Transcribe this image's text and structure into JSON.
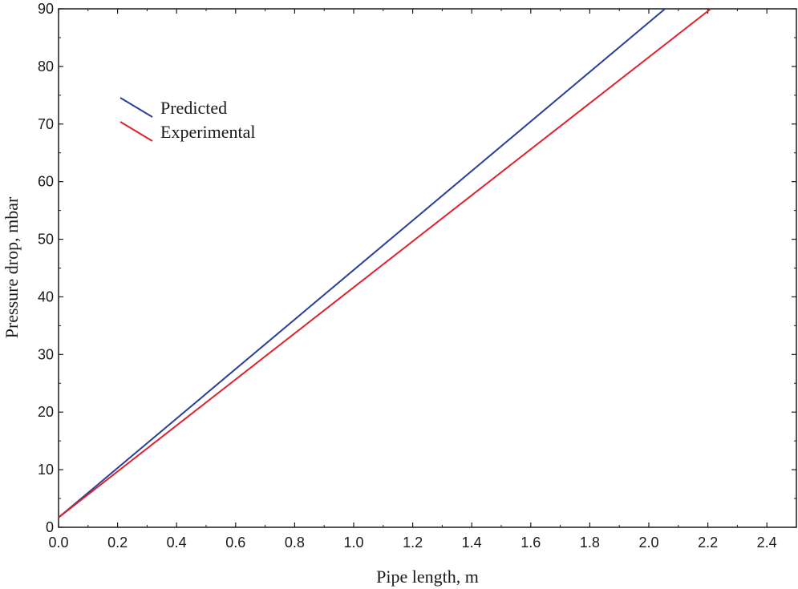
{
  "chart_data": {
    "type": "line",
    "title": "",
    "xlabel": "Pipe length, m",
    "ylabel": "Pressure drop, mbar",
    "xlim": [
      0,
      2.5
    ],
    "ylim": [
      0,
      90
    ],
    "xticks": [
      "0.0",
      "0.2",
      "0.4",
      "0.6",
      "0.8",
      "1.0",
      "1.2",
      "1.4",
      "1.6",
      "1.8",
      "2.0",
      "2.2",
      "2.4"
    ],
    "yticks": [
      "0",
      "10",
      "20",
      "30",
      "40",
      "50",
      "60",
      "70",
      "80",
      "90"
    ],
    "grid": false,
    "legend_position": "top-left",
    "series": [
      {
        "name": "Predicted",
        "color": "#2b3f9a",
        "x": [
          0.0,
          2.055
        ],
        "y": [
          1.7,
          90
        ]
      },
      {
        "name": "Experimental",
        "color": "#e0202a",
        "x": [
          0.0,
          2.21
        ],
        "y": [
          1.7,
          90
        ]
      }
    ]
  }
}
